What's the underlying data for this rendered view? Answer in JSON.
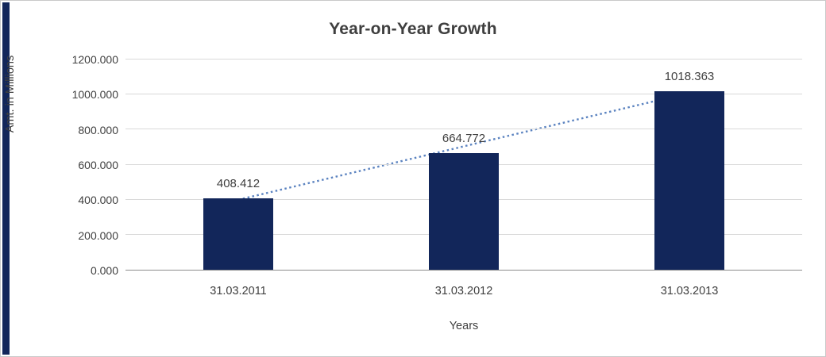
{
  "chart_data": {
    "type": "bar",
    "title": "Year-on-Year Growth",
    "xlabel": "Years",
    "ylabel": "Amt. in Millions",
    "categories": [
      "31.03.2011",
      "31.03.2012",
      "31.03.2013"
    ],
    "values": [
      408.412,
      664.772,
      1018.363
    ],
    "value_labels": [
      "408.412",
      "664.772",
      "1018.363"
    ],
    "ylim": [
      0,
      1200
    ],
    "ytick_labels": [
      "0.000",
      "200.000",
      "400.000",
      "600.000",
      "800.000",
      "1000.000",
      "1200.000"
    ],
    "grid": true,
    "legend": "none",
    "bar_color": "#12265a",
    "trendline": {
      "style": "dotted",
      "color": "#5b83c0",
      "from_value": 408.412,
      "to_value": 1018.363
    },
    "accent_strip_color": "#12265a"
  }
}
